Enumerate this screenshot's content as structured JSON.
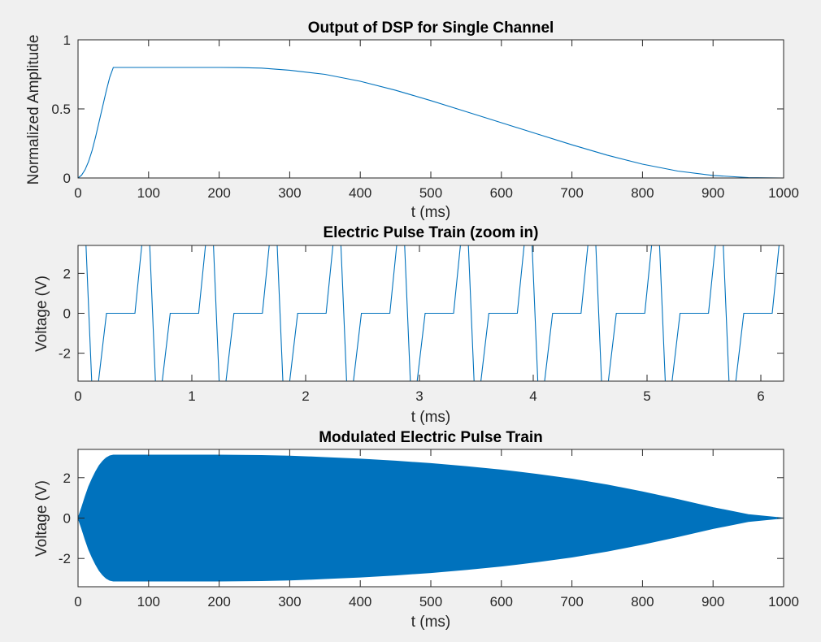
{
  "colors": {
    "line": "#0072BD",
    "axes_bg": "#ffffff",
    "figure_bg": "#f0f0f0",
    "axis": "#262626"
  },
  "chart_data": [
    {
      "type": "line",
      "title": "Output of DSP for Single Channel",
      "xlabel": "t (ms)",
      "ylabel": "Normalized Amplitude",
      "xlim": [
        0,
        1000
      ],
      "ylim": [
        0,
        1
      ],
      "xticks": [
        0,
        100,
        200,
        300,
        400,
        500,
        600,
        700,
        800,
        900,
        1000
      ],
      "yticks": [
        0,
        0.5,
        1
      ],
      "xtick_labels": [
        "0",
        "100",
        "200",
        "300",
        "400",
        "500",
        "600",
        "700",
        "800",
        "900",
        "1000"
      ],
      "ytick_labels": [
        "0",
        "0.5",
        "1"
      ],
      "grid": false,
      "series": [
        {
          "x": [
            0,
            5,
            10,
            15,
            20,
            25,
            30,
            35,
            40,
            45,
            50,
            100,
            150,
            200,
            230,
            260,
            300,
            350,
            400,
            450,
            500,
            550,
            600,
            650,
            700,
            750,
            800,
            850,
            900,
            950,
            1000
          ],
          "y": [
            0,
            0.02,
            0.06,
            0.12,
            0.2,
            0.3,
            0.41,
            0.52,
            0.63,
            0.73,
            0.8,
            0.8,
            0.8,
            0.8,
            0.799,
            0.795,
            0.78,
            0.75,
            0.7,
            0.635,
            0.56,
            0.48,
            0.4,
            0.32,
            0.24,
            0.165,
            0.1,
            0.05,
            0.018,
            0.003,
            0
          ]
        }
      ]
    },
    {
      "type": "line",
      "title": "Electric Pulse Train (zoom in)",
      "xlabel": "t (ms)",
      "ylabel": "Voltage (V)",
      "xlim": [
        0,
        6.2
      ],
      "ylim": [
        -3.4,
        3.4
      ],
      "xticks": [
        0,
        1,
        2,
        3,
        4,
        5,
        6
      ],
      "yticks": [
        -2,
        0,
        2
      ],
      "xtick_labels": [
        "0",
        "1",
        "2",
        "3",
        "4",
        "5",
        "6"
      ],
      "ytick_labels": [
        "-2",
        "0",
        "2"
      ],
      "grid": false,
      "pulse_period": 0.56,
      "pulse_amplitude": 3.4,
      "series": [
        {
          "x": [
            0,
            0.07,
            0.12,
            0.18,
            0.25,
            0.5,
            0.56
          ],
          "y": [
            3.4,
            3.4,
            -3.4,
            -3.4,
            0,
            0,
            3.4
          ]
        }
      ]
    },
    {
      "type": "area",
      "title": "Modulated Electric Pulse Train",
      "xlabel": "t (ms)",
      "ylabel": "Voltage (V)",
      "xlim": [
        0,
        1000
      ],
      "ylim": [
        -3.4,
        3.4
      ],
      "xticks": [
        0,
        100,
        200,
        300,
        400,
        500,
        600,
        700,
        800,
        900,
        1000
      ],
      "yticks": [
        -2,
        0,
        2
      ],
      "xtick_labels": [
        "0",
        "100",
        "200",
        "300",
        "400",
        "500",
        "600",
        "700",
        "800",
        "900",
        "1000"
      ],
      "ytick_labels": [
        "-2",
        "0",
        "2"
      ],
      "grid": false,
      "series": [
        {
          "x": [
            0,
            5,
            10,
            15,
            20,
            25,
            30,
            35,
            40,
            45,
            50,
            100,
            150,
            200,
            230,
            260,
            300,
            350,
            400,
            450,
            500,
            550,
            600,
            650,
            700,
            750,
            800,
            850,
            900,
            950,
            1000
          ],
          "upper": [
            0,
            0.5,
            1.05,
            1.55,
            1.95,
            2.3,
            2.6,
            2.82,
            2.98,
            3.08,
            3.12,
            3.12,
            3.12,
            3.12,
            3.11,
            3.1,
            3.07,
            3.0,
            2.92,
            2.82,
            2.7,
            2.55,
            2.38,
            2.17,
            1.93,
            1.64,
            1.3,
            0.92,
            0.52,
            0.17,
            0
          ],
          "lower": [
            0,
            -0.5,
            -1.05,
            -1.55,
            -1.95,
            -2.3,
            -2.6,
            -2.82,
            -2.98,
            -3.08,
            -3.12,
            -3.12,
            -3.12,
            -3.12,
            -3.11,
            -3.1,
            -3.07,
            -3.0,
            -2.92,
            -2.82,
            -2.7,
            -2.55,
            -2.38,
            -2.17,
            -1.93,
            -1.64,
            -1.3,
            -0.92,
            -0.52,
            -0.17,
            0
          ]
        }
      ]
    }
  ]
}
